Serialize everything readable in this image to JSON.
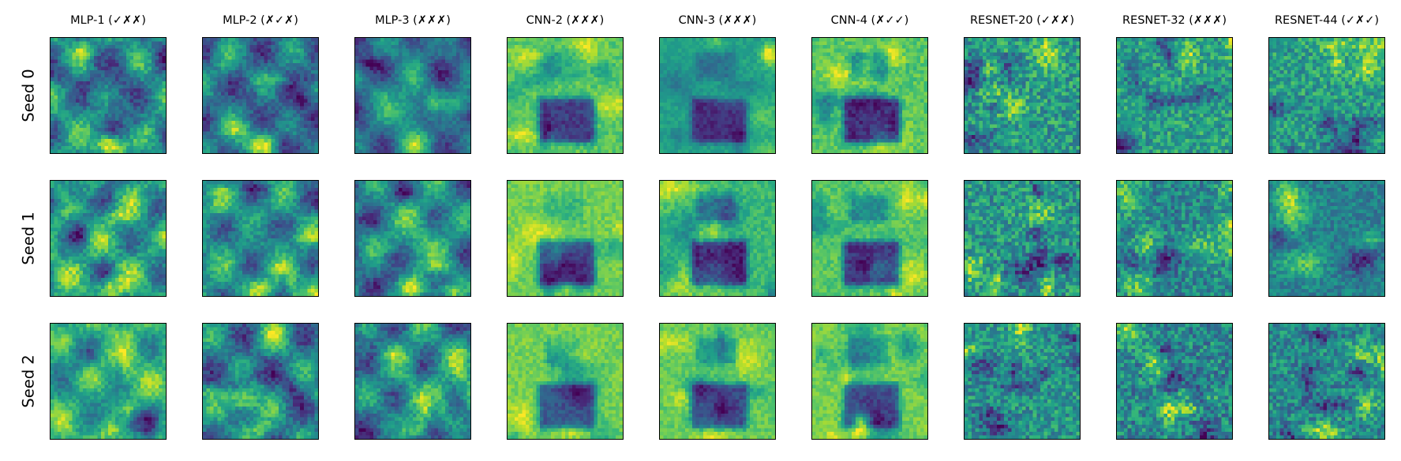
{
  "chart_data": {
    "type": "heatmap",
    "colormap": "viridis",
    "grid": false,
    "columns": [
      "MLP-1 (✓✗✗)",
      "MLP-2 (✗✓✗)",
      "MLP-3 (✗✗✗)",
      "CNN-2 (✗✗✗)",
      "CNN-3 (✗✗✗)",
      "CNN-4 (✗✓✓)",
      "RESNET-20 (✓✗✗)",
      "RESNET-32 (✗✗✗)",
      "RESNET-44 (✓✗✓)"
    ],
    "rows": [
      "Seed 0",
      "Seed 1",
      "Seed 2"
    ],
    "image_resolution": [
      32,
      32
    ],
    "axis_ticks": false
  }
}
